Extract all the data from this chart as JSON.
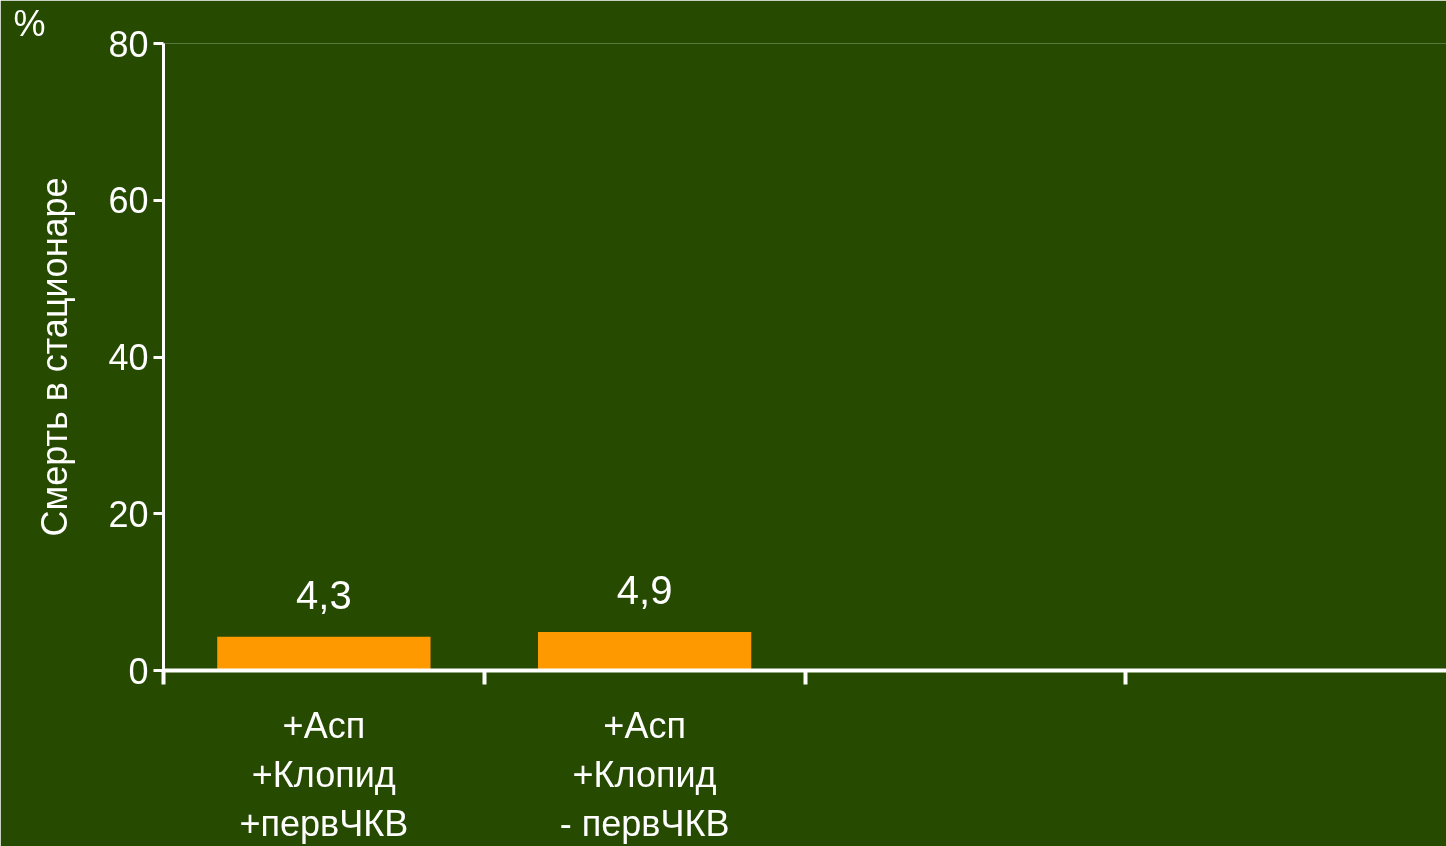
{
  "chart_data": {
    "type": "bar",
    "ylabel": "Смерть в стационаре",
    "annotations": [
      "%"
    ],
    "categories": [
      "+Асп\n+Клопид\n+первЧКВ",
      "+Асп\n+Клопид\n- первЧКВ",
      null,
      null
    ],
    "values": [
      4.3,
      4.9,
      null,
      null
    ],
    "color": "#ff9900",
    "value_labels": [
      "4,3",
      "4,9",
      null,
      null
    ],
    "ylim": [
      0,
      80
    ],
    "yticks": [
      0,
      20,
      40,
      60,
      80
    ]
  }
}
